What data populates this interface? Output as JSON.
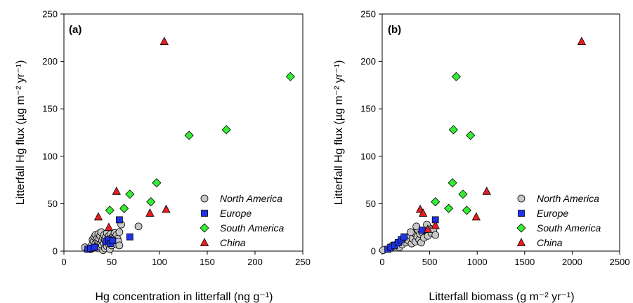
{
  "colors": {
    "North America": "#c8c8c8",
    "Europe": "#1f32e6",
    "South America": "#33ee33",
    "China": "#e61e1e",
    "stroke": "#000000"
  },
  "chart_data": [
    {
      "type": "scatter",
      "panel_label": "(a)",
      "xlabel": "Hg concentration in litterfall (ng g⁻¹)",
      "ylabel": "Litterfall Hg flux (µg m⁻² yr⁻¹)",
      "xlim": [
        0,
        250
      ],
      "ylim": [
        0,
        250
      ],
      "xticks": [
        0,
        50,
        100,
        150,
        200,
        250
      ],
      "yticks": [
        0,
        50,
        100,
        150,
        200,
        250
      ],
      "grid": false,
      "legend_position": "bottom-right",
      "series": [
        {
          "name": "North America",
          "marker": "circle",
          "points": [
            [
              22,
              4
            ],
            [
              28,
              2
            ],
            [
              29,
              6
            ],
            [
              30,
              12
            ],
            [
              31,
              10
            ],
            [
              32,
              15
            ],
            [
              33,
              17
            ],
            [
              33,
              8
            ],
            [
              34,
              5
            ],
            [
              35,
              11
            ],
            [
              35,
              14
            ],
            [
              36,
              3
            ],
            [
              36,
              18
            ],
            [
              37,
              9
            ],
            [
              37,
              13
            ],
            [
              38,
              7
            ],
            [
              38,
              16
            ],
            [
              39,
              4
            ],
            [
              39,
              20
            ],
            [
              40,
              11
            ],
            [
              40,
              6
            ],
            [
              41,
              14
            ],
            [
              41,
              1
            ],
            [
              42,
              8
            ],
            [
              42,
              17
            ],
            [
              43,
              3
            ],
            [
              43,
              12
            ],
            [
              44,
              9
            ],
            [
              44,
              15
            ],
            [
              45,
              5
            ],
            [
              45,
              19
            ],
            [
              46,
              10
            ],
            [
              46,
              13
            ],
            [
              47,
              7
            ],
            [
              47,
              16
            ],
            [
              48,
              2
            ],
            [
              48,
              11
            ],
            [
              49,
              8
            ],
            [
              49,
              18
            ],
            [
              50,
              14
            ],
            [
              50,
              6
            ],
            [
              51,
              12
            ],
            [
              52,
              16
            ],
            [
              52,
              9
            ],
            [
              53,
              19
            ],
            [
              54,
              11
            ],
            [
              54,
              15
            ],
            [
              55,
              7
            ],
            [
              55,
              17
            ],
            [
              56,
              13
            ],
            [
              57,
              10
            ],
            [
              58,
              6
            ],
            [
              58,
              20
            ],
            [
              60,
              28
            ],
            [
              78,
              26
            ]
          ]
        },
        {
          "name": "Europe",
          "marker": "square",
          "points": [
            [
              25,
              2
            ],
            [
              28,
              3
            ],
            [
              32,
              4
            ],
            [
              44,
              10
            ],
            [
              47,
              12
            ],
            [
              49,
              8
            ],
            [
              51,
              11
            ],
            [
              58,
              33
            ],
            [
              69,
              15
            ]
          ]
        },
        {
          "name": "South America",
          "marker": "diamond",
          "points": [
            [
              48,
              43
            ],
            [
              63,
              45
            ],
            [
              69,
              60
            ],
            [
              91,
              52
            ],
            [
              97,
              72
            ],
            [
              131,
              122
            ],
            [
              170,
              128
            ],
            [
              237,
              184
            ]
          ]
        },
        {
          "name": "China",
          "marker": "triangle",
          "points": [
            [
              36,
              36
            ],
            [
              47,
              25
            ],
            [
              55,
              63
            ],
            [
              90,
              40
            ],
            [
              105,
              221
            ],
            [
              107,
              44
            ]
          ]
        }
      ]
    },
    {
      "type": "scatter",
      "panel_label": "(b)",
      "xlabel": "Litterfall biomass (g m⁻² yr⁻¹)",
      "ylabel": "Litterfall Hg flux (µg m⁻² yr⁻¹)",
      "xlim": [
        0,
        2500
      ],
      "ylim": [
        0,
        250
      ],
      "xticks": [
        0,
        500,
        1000,
        1500,
        2000,
        2500
      ],
      "yticks": [
        0,
        50,
        100,
        150,
        200,
        250
      ],
      "grid": false,
      "legend_position": "bottom-right",
      "series": [
        {
          "name": "North America",
          "marker": "circle",
          "points": [
            [
              10,
              1
            ],
            [
              90,
              3
            ],
            [
              110,
              6
            ],
            [
              140,
              5
            ],
            [
              160,
              8
            ],
            [
              180,
              4
            ],
            [
              200,
              10
            ],
            [
              210,
              7
            ],
            [
              230,
              12
            ],
            [
              250,
              9
            ],
            [
              260,
              14
            ],
            [
              280,
              11
            ],
            [
              300,
              16
            ],
            [
              310,
              8
            ],
            [
              320,
              13
            ],
            [
              340,
              19
            ],
            [
              350,
              10
            ],
            [
              360,
              17
            ],
            [
              370,
              15
            ],
            [
              380,
              22
            ],
            [
              390,
              12
            ],
            [
              400,
              18
            ],
            [
              410,
              9
            ],
            [
              420,
              20
            ],
            [
              440,
              14
            ],
            [
              460,
              21
            ],
            [
              480,
              16
            ],
            [
              500,
              24
            ],
            [
              520,
              19
            ],
            [
              540,
              23
            ],
            [
              560,
              17
            ],
            [
              470,
              28
            ],
            [
              360,
              26
            ],
            [
              300,
              20
            ]
          ]
        },
        {
          "name": "Europe",
          "marker": "square",
          "points": [
            [
              60,
              2
            ],
            [
              90,
              4
            ],
            [
              130,
              6
            ],
            [
              170,
              9
            ],
            [
              200,
              12
            ],
            [
              230,
              15
            ],
            [
              420,
              22
            ],
            [
              560,
              33
            ]
          ]
        },
        {
          "name": "South America",
          "marker": "diamond",
          "points": [
            [
              560,
              52
            ],
            [
              700,
              45
            ],
            [
              740,
              72
            ],
            [
              750,
              128
            ],
            [
              780,
              184
            ],
            [
              850,
              60
            ],
            [
              890,
              43
            ],
            [
              930,
              122
            ]
          ]
        },
        {
          "name": "China",
          "marker": "triangle",
          "points": [
            [
              400,
              44
            ],
            [
              430,
              40
            ],
            [
              480,
              23
            ],
            [
              560,
              27
            ],
            [
              990,
              36
            ],
            [
              1100,
              63
            ],
            [
              2100,
              221
            ]
          ]
        }
      ]
    }
  ]
}
